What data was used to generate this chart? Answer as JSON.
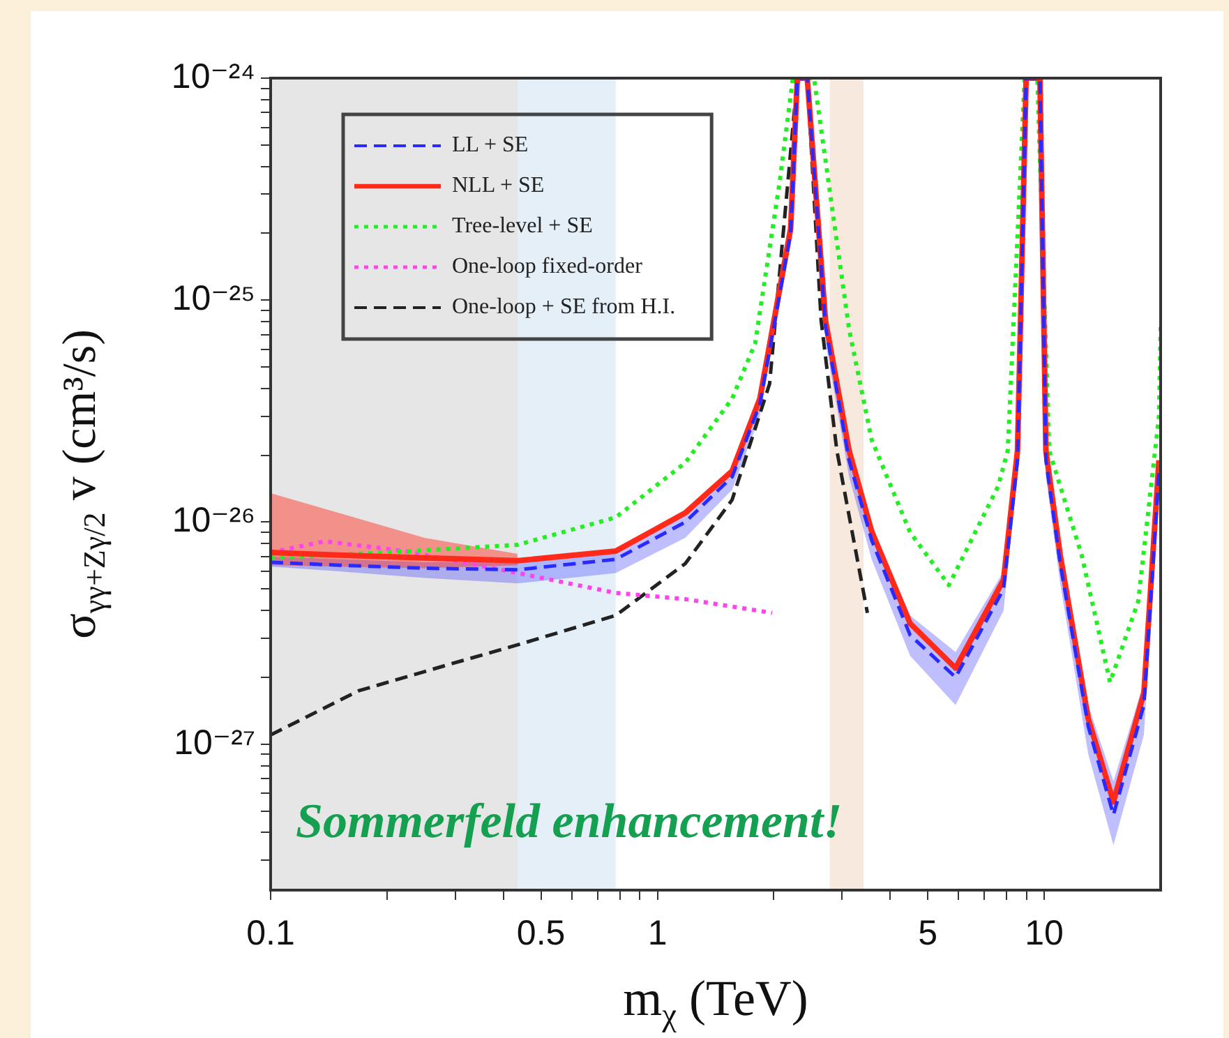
{
  "chart_data": {
    "type": "line",
    "xlabel": "m$_{χ}$ (TeV)",
    "ylabel": "σ$_{γγ+Zγ/2}$ v (cm³/s)",
    "log": "xy",
    "grid": false,
    "legend": "top left",
    "marker": "none",
    "xlim": [
      0.1,
      20
    ],
    "ylim": [
      2.2e-28,
      1e-24
    ],
    "xticks": [
      0.1,
      {
        "value": 0.2,
        "label": null
      },
      {
        "value": 0.3,
        "label": null
      },
      {
        "value": 0.4,
        "label": null
      },
      0.5,
      {
        "value": 0.6,
        "label": null
      },
      {
        "value": 0.7,
        "label": null
      },
      {
        "value": 0.8,
        "label": null
      },
      {
        "value": 0.9,
        "label": null
      },
      1,
      {
        "value": 2,
        "label": null
      },
      {
        "value": 3,
        "label": null
      },
      {
        "value": 4,
        "label": null
      },
      5,
      {
        "value": 6,
        "label": null
      },
      {
        "value": 7,
        "label": null
      },
      {
        "value": 8,
        "label": null
      },
      {
        "value": 9,
        "label": null
      },
      10
    ],
    "yticks": [
      {
        "value": 3e-28,
        "label": null
      },
      {
        "value": 4e-28,
        "label": null
      },
      {
        "value": 5e-28,
        "label": null
      },
      {
        "value": 6e-28,
        "label": null
      },
      {
        "value": 7e-28,
        "label": null
      },
      {
        "value": 8e-28,
        "label": null
      },
      {
        "value": 9e-28,
        "label": null
      },
      {
        "value": 1e-27,
        "label": "10⁻²⁷"
      },
      {
        "value": 2e-27,
        "label": null
      },
      {
        "value": 3e-27,
        "label": null
      },
      {
        "value": 4e-27,
        "label": null
      },
      {
        "value": 5e-27,
        "label": null
      },
      {
        "value": 6e-27,
        "label": null
      },
      {
        "value": 7e-27,
        "label": null
      },
      {
        "value": 8e-27,
        "label": null
      },
      {
        "value": 9e-27,
        "label": null
      },
      {
        "value": 1e-26,
        "label": "10⁻²⁶"
      },
      {
        "value": 2e-26,
        "label": null
      },
      {
        "value": 3e-26,
        "label": null
      },
      {
        "value": 4e-26,
        "label": null
      },
      {
        "value": 5e-26,
        "label": null
      },
      {
        "value": 6e-26,
        "label": null
      },
      {
        "value": 7e-26,
        "label": null
      },
      {
        "value": 8e-26,
        "label": null
      },
      {
        "value": 9e-26,
        "label": null
      },
      {
        "value": 1e-25,
        "label": "10⁻²⁵"
      },
      {
        "value": 2e-25,
        "label": null
      },
      {
        "value": 3e-25,
        "label": null
      },
      {
        "value": 4e-25,
        "label": null
      },
      {
        "value": 5e-25,
        "label": null
      },
      {
        "value": 6e-25,
        "label": null
      },
      {
        "value": 7e-25,
        "label": null
      },
      {
        "value": 8e-25,
        "label": null
      },
      {
        "value": 9e-25,
        "label": null
      },
      {
        "value": 1e-24,
        "label": "10⁻²⁴"
      }
    ],
    "bands": [
      {
        "axis": "x",
        "from": 0.1,
        "to": 0.435,
        "color": "#e6e6e6"
      },
      {
        "axis": "x",
        "from": 0.435,
        "to": 0.78,
        "color": "#e4eff8"
      },
      {
        "axis": "x",
        "from": 2.79,
        "to": 3.41,
        "color": "#f8e9de"
      }
    ],
    "annotations": [
      "Sommerfeld enhancement!"
    ],
    "series": [
      {
        "name": "LL + SE",
        "color": "#2a2aff",
        "line_style": "dashed",
        "x": [
          0.1,
          0.15,
          0.25,
          0.435,
          0.78,
          1.18,
          1.56,
          1.84,
          2.21,
          2.3,
          2.44,
          2.72,
          3.13,
          3.58,
          4.5,
          5.9,
          7.85,
          8.53,
          8.98,
          9.75,
          10.1,
          11,
          13,
          15.1,
          18.1,
          19.8
        ],
        "values": [
          6.6e-27,
          6.4e-27,
          6.2e-27,
          6.1e-27,
          6.8e-27,
          1e-26,
          1.6e-26,
          3.4e-26,
          2e-25,
          1e-24,
          1e-24,
          7.6e-26,
          1.9e-26,
          8.3e-27,
          3.1e-27,
          2e-27,
          5e-27,
          1.9e-26,
          1e-24,
          1e-24,
          1.9e-26,
          6.5e-27,
          1.2e-27,
          4.8e-28,
          1.5e-27,
          1.7e-26
        ],
        "lower": [
          6.3e-27,
          6e-27,
          5.6e-27,
          5.3e-27,
          5.9e-27,
          8.5e-27,
          1.4e-26,
          3e-26,
          1.8e-25,
          1e-24,
          1e-24,
          6.5e-26,
          1.6e-26,
          6.8e-27,
          2.5e-27,
          1.5e-27,
          4e-27,
          1.6e-26,
          1e-24,
          1e-24,
          1.6e-26,
          5.3e-27,
          9e-28,
          3.5e-28,
          1.1e-27,
          1.3e-26
        ],
        "upper": [
          7e-27,
          6.8e-27,
          6.6e-27,
          6.6e-27,
          7.4e-27,
          1.1e-26,
          1.75e-26,
          3.7e-26,
          2.2e-25,
          1e-24,
          1e-24,
          8.5e-26,
          2.2e-26,
          9.6e-27,
          3.8e-27,
          2.6e-27,
          6e-27,
          2.2e-26,
          1e-24,
          1e-24,
          2.2e-26,
          7.5e-27,
          1.5e-27,
          6.8e-28,
          1.9e-27,
          2e-26
        ]
      },
      {
        "name": "NLL + SE",
        "color": "#ff2a1a",
        "line_style": "solid",
        "x": [
          0.1,
          0.15,
          0.25,
          0.435,
          0.78,
          1.18,
          1.56,
          1.84,
          2.21,
          2.3,
          2.44,
          2.72,
          3.13,
          3.58,
          4.5,
          5.9,
          7.85,
          8.53,
          8.98,
          9.75,
          10.1,
          11,
          13,
          15.1,
          18.1,
          19.8
        ],
        "values": [
          7.3e-27,
          7.1e-27,
          6.9e-27,
          6.7e-27,
          7.4e-27,
          1.1e-26,
          1.7e-26,
          3.6e-26,
          2.1e-25,
          1e-24,
          1e-24,
          8.1e-26,
          2.1e-26,
          9.1e-27,
          3.5e-27,
          2.2e-27,
          5.5e-27,
          2.1e-26,
          1e-24,
          1e-24,
          2.1e-26,
          7.1e-27,
          1.3e-27,
          5.5e-28,
          1.7e-27,
          1.9e-26
        ],
        "lower": [
          6.4e-27,
          6.3e-27,
          6.2e-27,
          6.4e-27,
          null,
          null,
          null,
          null,
          null,
          null,
          null,
          null,
          null,
          null,
          null,
          null,
          null,
          null,
          null,
          null,
          null,
          null,
          null,
          null,
          null,
          null
        ],
        "upper": [
          1.35e-26,
          1.1e-26,
          8.5e-27,
          7.2e-27,
          null,
          null,
          null,
          null,
          null,
          null,
          null,
          null,
          null,
          null,
          null,
          null,
          null,
          null,
          null,
          null,
          null,
          null,
          null,
          null,
          null,
          null
        ]
      },
      {
        "name": "Tree-level + SE",
        "color": "#22ee22",
        "line_style": "dotted",
        "x": [
          0.1,
          0.2,
          0.435,
          0.78,
          1.18,
          1.56,
          1.79,
          2.07,
          2.24,
          2.54,
          3.13,
          3.58,
          4.5,
          5.67,
          7.6,
          8.05,
          8.9,
          9.6,
          10.3,
          12.5,
          14.8,
          17.5,
          19.8,
          20
        ],
        "values": [
          6.9e-27,
          7.3e-27,
          7.9e-27,
          1.05e-26,
          1.85e-26,
          3.6e-26,
          6.4e-26,
          3.4e-25,
          1e-24,
          1e-24,
          7.4e-26,
          2.35e-26,
          9e-27,
          5.2e-27,
          1.45e-26,
          2.1e-26,
          1e-24,
          1e-24,
          2.1e-26,
          7.1e-27,
          1.9e-27,
          4.4e-27,
          3e-26,
          7.6e-26
        ]
      },
      {
        "name": "One-loop fixed-order",
        "color": "#ff44ee",
        "line_style": "dotted",
        "x": [
          0.1,
          0.138,
          0.223,
          0.435,
          0.78,
          1.18,
          1.98
        ],
        "values": [
          7.3e-27,
          8.2e-27,
          7.4e-27,
          5.9e-27,
          4.8e-27,
          4.5e-27,
          3.9e-27
        ]
      },
      {
        "name": "One-loop + SE from H.I.",
        "color": "#222222",
        "line_style": "dashed",
        "x": [
          0.1,
          0.169,
          0.293,
          0.435,
          0.78,
          1.18,
          1.56,
          1.95,
          2.12,
          2.3,
          2.44,
          2.65,
          2.91,
          3.49
        ],
        "values": [
          1.1e-27,
          1.74e-27,
          2.3e-27,
          2.8e-27,
          3.8e-27,
          6.5e-27,
          1.26e-26,
          4.2e-26,
          2.1e-25,
          1e-24,
          1e-24,
          8.1e-26,
          2.1e-26,
          3.9e-27
        ]
      }
    ]
  }
}
